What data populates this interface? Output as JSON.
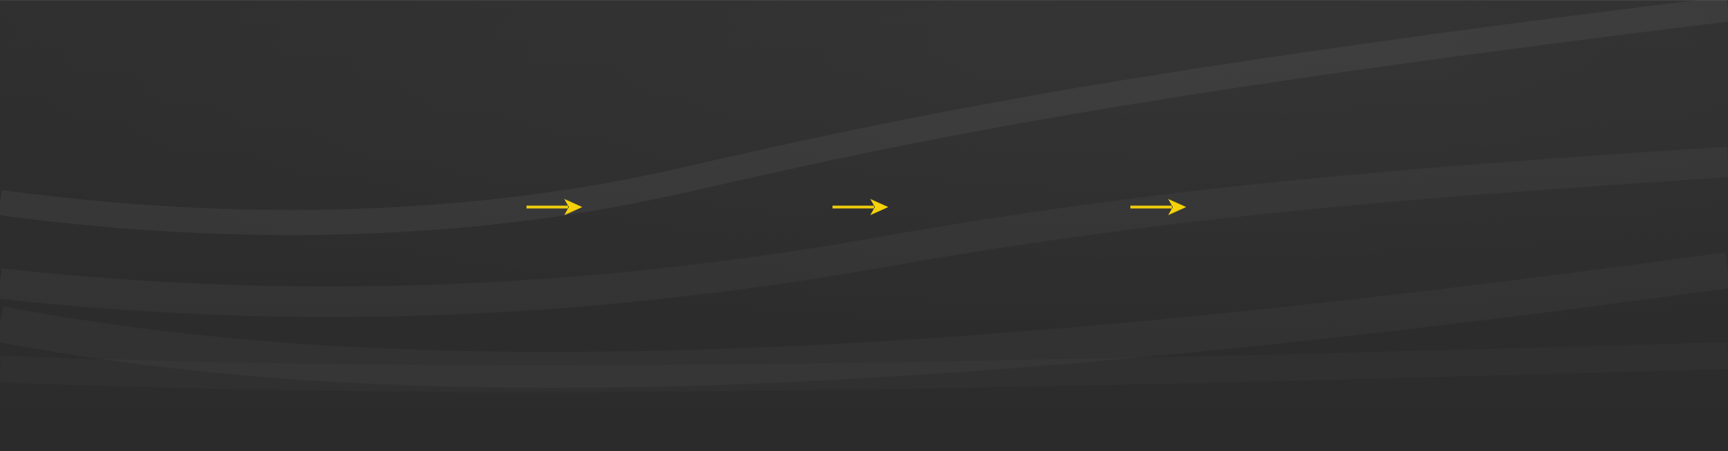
{
  "theme": {
    "background": "#2c2c2c",
    "arrow_color": "#f6d20b"
  },
  "icons": {
    "arrow": "arrow-right-icon"
  },
  "arrows": [
    {
      "name": "arrow-right-icon"
    },
    {
      "name": "arrow-right-icon"
    },
    {
      "name": "arrow-right-icon"
    }
  ]
}
